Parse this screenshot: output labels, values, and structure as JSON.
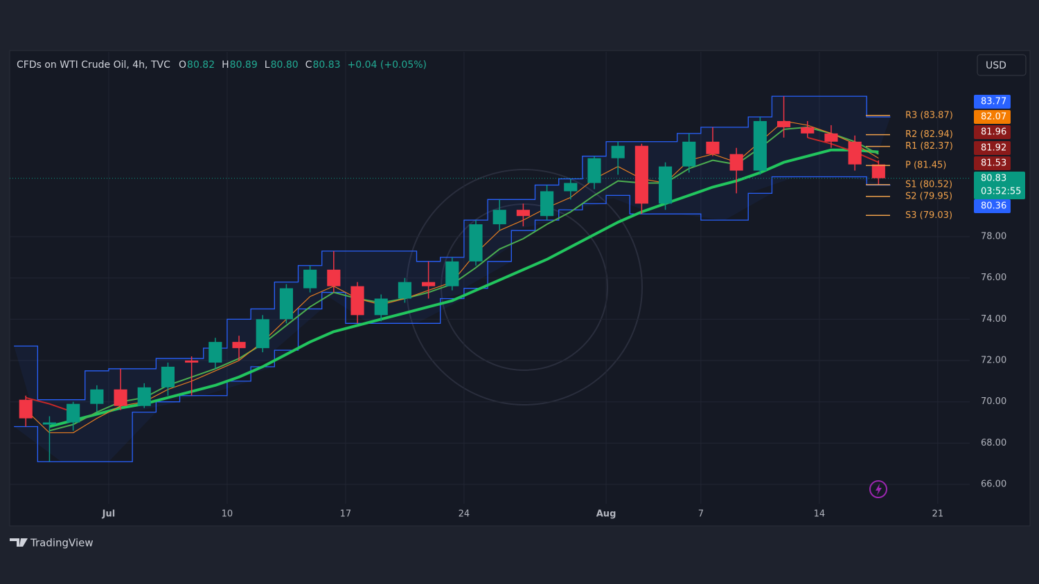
{
  "header": {
    "symbol": "CFDs on WTI Crude Oil, 4h, TVC",
    "ohlc": [
      {
        "key": "O",
        "value": "80.82"
      },
      {
        "key": "H",
        "value": "80.89"
      },
      {
        "key": "L",
        "value": "80.80"
      },
      {
        "key": "C",
        "value": "80.83"
      }
    ],
    "change": "+0.04 (+0.05%)",
    "currency": "USD"
  },
  "brand": "TradingView",
  "chart_data": {
    "type": "candlestick",
    "x": [
      -4,
      -3,
      -2,
      -1,
      0,
      1,
      2,
      3,
      4,
      5,
      6,
      7,
      8,
      9,
      10,
      11,
      12,
      13,
      14,
      15,
      16,
      17,
      18,
      19,
      20,
      21,
      22,
      23,
      24,
      25,
      26,
      27,
      28,
      29,
      30,
      31,
      32
    ],
    "open": [
      70.1,
      68.9,
      69.0,
      69.9,
      70.6,
      69.8,
      70.7,
      72.0,
      71.9,
      72.9,
      72.6,
      74.0,
      75.5,
      76.4,
      75.6,
      74.2,
      75.0,
      75.8,
      75.6,
      76.8,
      78.6,
      79.3,
      79.0,
      80.2,
      80.6,
      81.8,
      82.4,
      79.6,
      81.4,
      82.6,
      82.0,
      81.2,
      83.6,
      83.3,
      83.0,
      82.6,
      81.5
    ],
    "high": [
      70.3,
      69.3,
      70.0,
      70.8,
      71.6,
      70.9,
      71.9,
      72.2,
      73.1,
      73.2,
      74.2,
      75.7,
      76.6,
      77.3,
      75.8,
      75.2,
      76.0,
      76.8,
      77.0,
      78.8,
      79.8,
      79.6,
      80.5,
      80.8,
      81.9,
      82.6,
      82.5,
      81.6,
      83.0,
      83.3,
      82.3,
      83.8,
      84.8,
      83.6,
      83.4,
      82.9,
      81.7
    ],
    "low": [
      68.8,
      67.1,
      68.6,
      69.5,
      69.6,
      69.7,
      70.3,
      70.3,
      71.6,
      72.0,
      72.4,
      73.8,
      75.3,
      75.3,
      73.8,
      73.9,
      74.8,
      75.0,
      75.4,
      76.6,
      78.3,
      78.5,
      78.8,
      79.8,
      80.3,
      81.0,
      79.1,
      79.3,
      81.1,
      81.9,
      80.1,
      81.0,
      82.8,
      82.8,
      82.3,
      81.2,
      80.5
    ],
    "close": [
      69.2,
      69.0,
      69.9,
      70.6,
      69.8,
      70.7,
      71.7,
      71.9,
      72.9,
      72.6,
      74.0,
      75.5,
      76.4,
      75.6,
      74.2,
      75.0,
      75.8,
      75.6,
      76.8,
      78.6,
      79.3,
      79.0,
      80.2,
      80.6,
      81.8,
      82.4,
      79.6,
      81.4,
      82.6,
      82.0,
      81.2,
      83.6,
      83.3,
      83.0,
      82.6,
      81.5,
      80.83
    ],
    "up_color": "#089981",
    "down_color": "#f23645",
    "band": {
      "color": "#2962ff",
      "upper": [
        72.7,
        70.1,
        70.1,
        71.5,
        71.6,
        71.6,
        72.1,
        72.1,
        72.6,
        74.0,
        74.5,
        75.8,
        76.6,
        77.3,
        77.3,
        77.3,
        77.3,
        76.8,
        77.0,
        78.8,
        79.8,
        79.8,
        80.5,
        80.8,
        81.9,
        82.6,
        82.6,
        82.6,
        83.0,
        83.3,
        83.3,
        83.8,
        84.8,
        84.8,
        84.8,
        84.8,
        83.8
      ],
      "lower": [
        68.8,
        67.1,
        67.1,
        67.1,
        67.1,
        69.5,
        70.0,
        70.3,
        70.3,
        71.0,
        71.7,
        72.5,
        74.5,
        75.3,
        73.8,
        73.8,
        73.8,
        73.8,
        75.0,
        75.5,
        76.8,
        78.3,
        78.8,
        79.3,
        79.6,
        80.0,
        79.1,
        79.1,
        79.1,
        78.8,
        78.8,
        80.1,
        80.9,
        80.9,
        80.9,
        80.9,
        80.5
      ]
    },
    "lines": [
      {
        "color": "#22c55e",
        "width": 4,
        "values": [
          null,
          68.8,
          69.1,
          69.4,
          69.7,
          69.9,
          70.2,
          70.5,
          70.8,
          71.2,
          71.7,
          72.3,
          72.9,
          73.4,
          73.7,
          74.0,
          74.3,
          74.6,
          74.9,
          75.4,
          75.9,
          76.4,
          76.9,
          77.5,
          78.1,
          78.7,
          79.2,
          79.6,
          80.0,
          80.4,
          80.7,
          81.1,
          81.6,
          81.9,
          82.2,
          82.2,
          82.1
        ]
      },
      {
        "color": "#4caf50",
        "width": 2,
        "values": [
          null,
          68.6,
          68.9,
          69.5,
          70.0,
          70.2,
          70.8,
          71.2,
          71.6,
          72.1,
          72.8,
          73.7,
          74.6,
          75.3,
          75.0,
          74.8,
          75.0,
          75.3,
          75.7,
          76.5,
          77.4,
          77.9,
          78.6,
          79.2,
          80.0,
          80.7,
          80.6,
          80.6,
          81.3,
          81.7,
          81.5,
          82.3,
          83.2,
          83.3,
          83.0,
          82.6,
          82.0
        ]
      },
      {
        "color": "#e67e22",
        "width": 1.2,
        "values": [
          69.6,
          68.5,
          68.5,
          69.2,
          69.8,
          70.0,
          70.6,
          71.0,
          71.5,
          72.0,
          72.9,
          74.0,
          75.1,
          75.6,
          75.0,
          74.7,
          75.0,
          75.4,
          75.8,
          77.2,
          78.3,
          78.8,
          79.4,
          79.9,
          80.8,
          81.4,
          80.8,
          80.6,
          81.7,
          82.0,
          81.6,
          82.6,
          83.6,
          83.4,
          83.0,
          82.5,
          81.8
        ]
      },
      {
        "color": "#c62828",
        "width": 2,
        "values": [
          70.2,
          69.9,
          69.5,
          null,
          null,
          null,
          null,
          null,
          null,
          null,
          null,
          null,
          null,
          null,
          null,
          null,
          null,
          null,
          null,
          null,
          null,
          null,
          null,
          null,
          null,
          null,
          null,
          null,
          null,
          null,
          null,
          null,
          null,
          82.8,
          82.5,
          82.1,
          81.6
        ]
      }
    ],
    "last_price": 80.83,
    "pivots": [
      {
        "label": "R3 (83.87)",
        "value": 83.87
      },
      {
        "label": "R2 (82.94)",
        "value": 82.94
      },
      {
        "label": "R1 (82.37)",
        "value": 82.37
      },
      {
        "label": "P (81.45)",
        "value": 81.45
      },
      {
        "label": "S1 (80.52)",
        "value": 80.52
      },
      {
        "label": "S2 (79.95)",
        "value": 79.95
      },
      {
        "label": "S3 (79.03)",
        "value": 79.03
      }
    ],
    "pivot_color": "#f0a14b",
    "price_labels": [
      {
        "value": 83.77,
        "color": "#2962ff"
      },
      {
        "value": 82.07,
        "color": "#f57c00"
      },
      {
        "value": 81.96,
        "color": "#8b1a1a"
      },
      {
        "value": 81.92,
        "color": "#8b1a1a"
      },
      {
        "value": 81.53,
        "color": "#8b1a1a"
      },
      {
        "value": 80.83,
        "color": "#089981"
      },
      {
        "value": 80.36,
        "color": "#2962ff"
      }
    ],
    "countdown": "03:52:55",
    "xlim": [
      -4.68,
      35.85
    ],
    "ylim": [
      63.99,
      86.95
    ],
    "xticks": [
      {
        "value": -0.5,
        "label": "Jul"
      },
      {
        "value": 4.5,
        "label": "10"
      },
      {
        "value": 9.5,
        "label": "17"
      },
      {
        "value": 14.5,
        "label": "24"
      },
      {
        "value": 20.5,
        "label": "Aug"
      },
      {
        "value": 24.5,
        "label": "7"
      },
      {
        "value": 29.5,
        "label": "14"
      },
      {
        "value": 34.5,
        "label": "21"
      }
    ],
    "yticks": [
      {
        "value": 66,
        "label": "66.00"
      },
      {
        "value": 68,
        "label": "68.00"
      },
      {
        "value": 70,
        "label": "70.00"
      },
      {
        "value": 72,
        "label": "72.00"
      },
      {
        "value": 74,
        "label": "74.00"
      },
      {
        "value": 76,
        "label": "76.00"
      },
      {
        "value": 78,
        "label": "78.00"
      }
    ],
    "grid": true
  }
}
